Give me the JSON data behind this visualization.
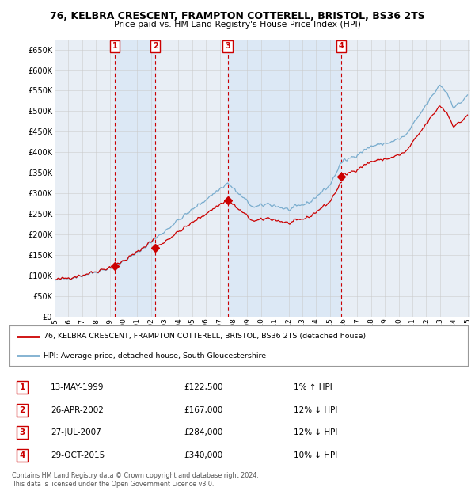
{
  "title": "76, KELBRA CRESCENT, FRAMPTON COTTERELL, BRISTOL, BS36 2TS",
  "subtitle": "Price paid vs. HM Land Registry's House Price Index (HPI)",
  "ylim": [
    0,
    675000
  ],
  "yticks": [
    0,
    50000,
    100000,
    150000,
    200000,
    250000,
    300000,
    350000,
    400000,
    450000,
    500000,
    550000,
    600000,
    650000
  ],
  "ytick_labels": [
    "£0",
    "£50K",
    "£100K",
    "£150K",
    "£200K",
    "£250K",
    "£300K",
    "£350K",
    "£400K",
    "£450K",
    "£500K",
    "£550K",
    "£600K",
    "£650K"
  ],
  "sale_dates": [
    1999.37,
    2002.32,
    2007.57,
    2015.83
  ],
  "sale_prices": [
    122500,
    167000,
    284000,
    340000
  ],
  "sale_labels": [
    "1",
    "2",
    "3",
    "4"
  ],
  "sale_color": "#cc0000",
  "hpi_color": "#7aadce",
  "band_color": "#dce8f5",
  "grid_color": "#c8c8c8",
  "legend_line1": "76, KELBRA CRESCENT, FRAMPTON COTTERELL, BRISTOL, BS36 2TS (detached house)",
  "legend_line2": "HPI: Average price, detached house, South Gloucestershire",
  "table_entries": [
    {
      "num": "1",
      "date": "13-MAY-1999",
      "price": "£122,500",
      "rel": "1% ↑ HPI"
    },
    {
      "num": "2",
      "date": "26-APR-2002",
      "price": "£167,000",
      "rel": "12% ↓ HPI"
    },
    {
      "num": "3",
      "date": "27-JUL-2007",
      "price": "£284,000",
      "rel": "12% ↓ HPI"
    },
    {
      "num": "4",
      "date": "29-OCT-2015",
      "price": "£340,000",
      "rel": "10% ↓ HPI"
    }
  ],
  "footnote": "Contains HM Land Registry data © Crown copyright and database right 2024.\nThis data is licensed under the Open Government Licence v3.0.",
  "background_color": "#ffffff",
  "plot_bg_color": "#e8eef5"
}
